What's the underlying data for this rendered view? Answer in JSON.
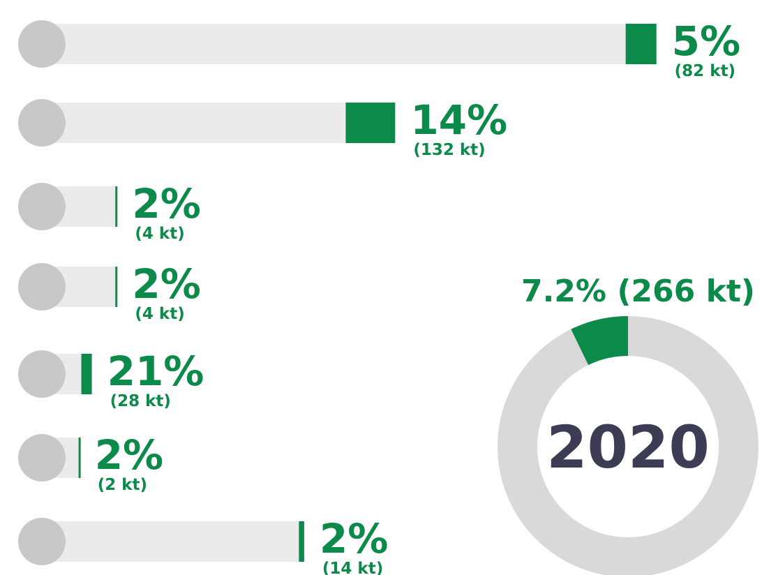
{
  "chart_data": [
    {
      "type": "bar",
      "values": [
        5,
        14,
        2,
        2,
        21,
        2,
        2
      ],
      "value_labels": [
        "5%",
        "14%",
        "2%",
        "2%",
        "21%",
        "2%",
        "2%"
      ],
      "amounts": [
        82,
        132,
        4,
        4,
        28,
        2,
        14
      ],
      "amount_labels": [
        "(82 kt)",
        "(132 kt)",
        "(4 kt)",
        "(4 kt)",
        "(28 kt)",
        "(2 kt)",
        "(14 kt)"
      ],
      "color": "#0b8a4a",
      "track_color": "#ebebeb"
    },
    {
      "type": "donut",
      "values": [
        7.2
      ],
      "value_labels": [
        "7.2% (266 kt)"
      ],
      "center_label": "2020",
      "color": "#0b8a4a",
      "track_color": "#d9d9d9"
    }
  ]
}
